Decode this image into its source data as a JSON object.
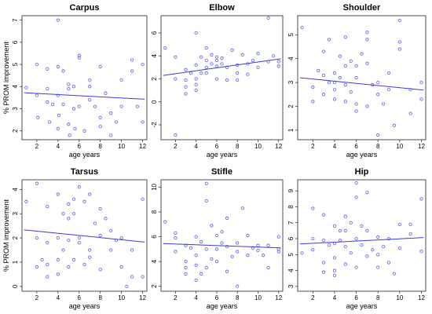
{
  "figure": {
    "point_color": "#5a5ae6",
    "line_color": "#3a3ae0"
  },
  "chart_data": [
    {
      "type": "scatter",
      "title": "Carpus",
      "xlabel": "age years",
      "ylabel": "% PROM improvement",
      "xlim": [
        0.6,
        12.4
      ],
      "ylim": [
        1.6,
        7.2
      ],
      "xticks": [
        2,
        4,
        6,
        8,
        10,
        12
      ],
      "yticks": [
        2,
        3,
        4,
        5,
        6,
        7
      ],
      "trend": {
        "x": [
          0.8,
          12.2
        ],
        "y": [
          3.72,
          3.43
        ]
      },
      "points": {
        "x": [
          1.0,
          2.0,
          2.0,
          2.1,
          3.0,
          3.0,
          3.0,
          3.2,
          3.5,
          4.0,
          4.0,
          4.0,
          4.0,
          4.1,
          4.5,
          4.5,
          5.0,
          5.0,
          5.0,
          5.1,
          5.5,
          5.5,
          5.6,
          6.0,
          6.0,
          6.0,
          6.5,
          7.0,
          7.0,
          7.0,
          7.5,
          8.0,
          8.0,
          8.0,
          8.5,
          9.0,
          9.0,
          9.5,
          10.0,
          10.0,
          11.0,
          11.0,
          11.5,
          12.0,
          12.0
        ],
        "y": [
          3.95,
          5.0,
          3.6,
          2.6,
          3.9,
          3.3,
          4.8,
          2.4,
          3.2,
          7.0,
          4.9,
          3.6,
          2.1,
          2.7,
          3.2,
          4.7,
          4.1,
          3.9,
          2.3,
          1.8,
          3.0,
          4.0,
          2.1,
          5.4,
          5.3,
          3.1,
          2.0,
          4.3,
          4.0,
          3.4,
          3.1,
          4.9,
          2.6,
          2.2,
          3.7,
          2.8,
          1.8,
          2.4,
          4.3,
          3.1,
          5.2,
          4.7,
          3.1,
          5.0,
          2.4
        ]
      }
    },
    {
      "type": "scatter",
      "title": "Elbow",
      "xlabel": "age years",
      "ylabel": "",
      "xlim": [
        0.6,
        12.4
      ],
      "ylim": [
        -3.3,
        7.5
      ],
      "xticks": [
        2,
        4,
        6,
        8,
        10,
        12
      ],
      "yticks": [
        -2,
        0,
        2,
        4,
        6
      ],
      "trend": {
        "x": [
          0.8,
          12.2
        ],
        "y": [
          2.3,
          3.75
        ]
      },
      "points": {
        "x": [
          1.0,
          2.0,
          2.0,
          2.0,
          3.0,
          3.0,
          3.0,
          3.0,
          3.5,
          4.0,
          4.0,
          4.0,
          4.0,
          4.0,
          4.5,
          4.5,
          5.0,
          5.0,
          5.0,
          5.0,
          5.5,
          5.5,
          6.0,
          6.0,
          6.0,
          6.0,
          6.5,
          6.5,
          7.0,
          7.0,
          7.5,
          8.0,
          8.0,
          8.0,
          8.5,
          9.0,
          9.0,
          9.5,
          10.0,
          10.0,
          11.0,
          11.0,
          11.5,
          12.0,
          12.0
        ],
        "y": [
          4.7,
          3.9,
          -2.9,
          2.0,
          2.8,
          1.9,
          1.3,
          0.7,
          2.5,
          6.0,
          3.2,
          2.0,
          1.0,
          1.5,
          3.9,
          2.5,
          4.7,
          3.6,
          3.0,
          2.5,
          4.1,
          3.3,
          3.9,
          3.6,
          3.1,
          2.0,
          3.8,
          3.3,
          3.0,
          1.9,
          4.5,
          3.2,
          2.5,
          1.9,
          4.1,
          3.3,
          2.4,
          3.6,
          4.2,
          3.0,
          7.3,
          3.5,
          4.0,
          3.5,
          3.1
        ]
      }
    },
    {
      "type": "scatter",
      "title": "Shoulder",
      "xlabel": "age years",
      "ylabel": "",
      "xlim": [
        0.6,
        12.4
      ],
      "ylim": [
        0.6,
        5.8
      ],
      "xticks": [
        2,
        4,
        6,
        8,
        10,
        12
      ],
      "yticks": [
        1,
        2,
        3,
        4,
        5
      ],
      "trend": {
        "x": [
          0.8,
          12.2
        ],
        "y": [
          3.2,
          2.68
        ]
      },
      "points": {
        "x": [
          1.0,
          2.0,
          2.0,
          2.5,
          3.0,
          3.0,
          3.0,
          3.5,
          3.5,
          4.0,
          4.0,
          4.0,
          4.0,
          4.5,
          4.5,
          5.0,
          5.0,
          5.0,
          5.0,
          5.5,
          5.5,
          6.0,
          6.0,
          6.0,
          6.0,
          6.5,
          7.0,
          7.0,
          7.0,
          7.0,
          7.5,
          8.0,
          8.0,
          8.0,
          8.5,
          9.0,
          9.0,
          9.5,
          10.0,
          10.0,
          10.0,
          11.0,
          11.0,
          12.0,
          12.0
        ],
        "y": [
          5.3,
          2.8,
          2.2,
          3.5,
          4.3,
          3.3,
          2.5,
          4.8,
          3.0,
          3.4,
          3.0,
          2.3,
          2.7,
          4.1,
          3.2,
          4.9,
          3.7,
          2.9,
          2.2,
          3.9,
          2.6,
          3.7,
          3.2,
          2.1,
          1.8,
          4.2,
          5.1,
          4.8,
          3.8,
          2.0,
          2.9,
          3.0,
          2.5,
          0.8,
          2.1,
          3.4,
          2.7,
          1.2,
          5.6,
          4.7,
          4.4,
          2.7,
          1.7,
          3.0,
          2.3
        ]
      }
    },
    {
      "type": "scatter",
      "title": "Tarsus",
      "xlabel": "age years",
      "ylabel": "% PROM improvement",
      "xlim": [
        0.6,
        12.4
      ],
      "ylim": [
        -0.2,
        4.4
      ],
      "xticks": [
        2,
        4,
        6,
        8,
        10,
        12
      ],
      "yticks": [
        0,
        1,
        2,
        3,
        4
      ],
      "trend": {
        "x": [
          0.8,
          12.2
        ],
        "y": [
          2.33,
          1.83
        ]
      },
      "points": {
        "x": [
          1.0,
          2.0,
          2.0,
          2.0,
          2.5,
          3.0,
          3.0,
          3.0,
          3.0,
          4.0,
          4.0,
          4.0,
          4.0,
          4.5,
          4.5,
          5.0,
          5.0,
          5.0,
          5.0,
          5.5,
          5.5,
          5.5,
          6.0,
          6.0,
          6.0,
          6.5,
          6.5,
          7.0,
          7.0,
          7.0,
          7.5,
          8.0,
          8.0,
          8.0,
          8.5,
          9.0,
          9.0,
          9.5,
          10.0,
          10.0,
          10.5,
          11.0,
          11.0,
          12.0,
          12.0
        ],
        "y": [
          3.5,
          4.25,
          2.0,
          0.8,
          1.1,
          3.3,
          1.8,
          0.9,
          0.4,
          3.8,
          2.0,
          1.1,
          0.5,
          3.0,
          1.5,
          3.4,
          2.8,
          1.9,
          0.8,
          3.6,
          3.0,
          1.1,
          4.1,
          2.0,
          1.8,
          3.5,
          0.9,
          3.8,
          1.5,
          1.2,
          2.6,
          3.2,
          2.1,
          0.7,
          2.8,
          2.3,
          1.5,
          1.9,
          2.0,
          0.8,
          0.0,
          1.5,
          0.4,
          3.6,
          0.4
        ]
      }
    },
    {
      "type": "scatter",
      "title": "Stifle",
      "xlabel": "age years",
      "ylabel": "",
      "xlim": [
        0.6,
        12.4
      ],
      "ylim": [
        1.6,
        10.6
      ],
      "xticks": [
        2,
        4,
        6,
        8,
        10,
        12
      ],
      "yticks": [
        2,
        4,
        6,
        8,
        10
      ],
      "trend": {
        "x": [
          0.8,
          12.2
        ],
        "y": [
          5.45,
          5.1
        ]
      },
      "points": {
        "x": [
          1.0,
          2.0,
          2.0,
          2.0,
          3.0,
          3.0,
          3.0,
          3.0,
          3.5,
          4.0,
          4.0,
          4.0,
          4.0,
          4.5,
          4.5,
          5.0,
          5.0,
          5.0,
          5.0,
          5.5,
          5.5,
          6.0,
          6.0,
          6.0,
          6.5,
          6.5,
          7.0,
          7.0,
          7.0,
          7.5,
          8.0,
          8.0,
          8.0,
          8.5,
          9.0,
          9.0,
          9.5,
          10.0,
          10.0,
          10.5,
          11.0,
          11.0,
          12.0,
          12.0,
          12.0
        ],
        "y": [
          7.2,
          6.3,
          5.9,
          4.8,
          5.3,
          4.0,
          3.5,
          3.0,
          5.1,
          6.0,
          4.5,
          3.7,
          2.5,
          5.6,
          3.0,
          10.3,
          8.9,
          5.0,
          3.5,
          6.9,
          4.2,
          6.1,
          5.0,
          4.0,
          6.4,
          5.5,
          7.5,
          5.2,
          3.2,
          4.4,
          5.5,
          4.8,
          2.0,
          8.3,
          6.1,
          4.5,
          5.1,
          5.3,
          4.9,
          4.5,
          5.3,
          3.5,
          6.0,
          5.0,
          4.8
        ]
      }
    },
    {
      "type": "scatter",
      "title": "Hip",
      "xlabel": "age years",
      "ylabel": "",
      "xlim": [
        0.6,
        12.4
      ],
      "ylim": [
        2.7,
        9.7
      ],
      "xticks": [
        2,
        4,
        6,
        8,
        10,
        12
      ],
      "yticks": [
        3,
        4,
        5,
        6,
        7,
        8,
        9
      ],
      "trend": {
        "x": [
          0.8,
          12.2
        ],
        "y": [
          5.67,
          6.07
        ]
      },
      "points": {
        "x": [
          1.0,
          2.0,
          2.0,
          2.0,
          3.0,
          3.0,
          3.0,
          3.0,
          3.5,
          4.0,
          4.0,
          4.0,
          4.0,
          4.0,
          4.5,
          4.5,
          5.0,
          5.0,
          5.0,
          5.0,
          5.5,
          5.5,
          6.0,
          6.0,
          6.0,
          6.0,
          6.5,
          6.5,
          7.0,
          7.0,
          7.0,
          7.5,
          8.0,
          8.0,
          8.0,
          8.5,
          9.0,
          9.0,
          9.5,
          10.0,
          10.0,
          11.0,
          11.0,
          12.0,
          12.0
        ],
        "y": [
          5.1,
          7.9,
          6.0,
          5.3,
          7.5,
          5.9,
          4.5,
          3.9,
          5.6,
          6.8,
          5.7,
          4.8,
          4.0,
          3.7,
          6.5,
          5.9,
          7.4,
          6.5,
          5.5,
          4.4,
          7.0,
          5.1,
          9.5,
          8.6,
          6.0,
          4.2,
          6.8,
          5.6,
          8.9,
          6.5,
          4.9,
          5.3,
          6.1,
          5.0,
          4.2,
          5.5,
          6.0,
          4.5,
          3.8,
          6.9,
          5.4,
          6.9,
          6.3,
          8.5,
          5.2
        ]
      }
    }
  ]
}
